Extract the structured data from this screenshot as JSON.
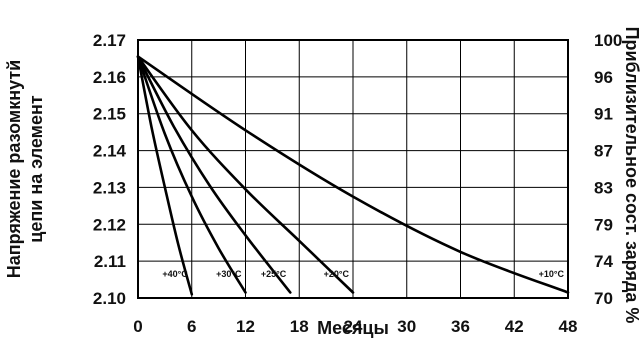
{
  "chart_data": {
    "type": "line",
    "xlabel": "Месяцы",
    "ylabel_lines": [
      "Напряжение разомкнутй",
      "цепи на элемент"
    ],
    "y2label": "Приблизительное сост. заряда %",
    "xlim": [
      0,
      48
    ],
    "ylim": [
      2.1,
      2.17
    ],
    "xticks": [
      "0",
      "6",
      "12",
      "18",
      "24",
      "30",
      "36",
      "42",
      "48"
    ],
    "yticks": [
      "2.10",
      "2.11",
      "2.12",
      "2.13",
      "2.14",
      "2.15",
      "2.16",
      "2.17"
    ],
    "y2ticks": [
      "70",
      "74",
      "79",
      "83",
      "87",
      "91",
      "96",
      "100"
    ],
    "grid": true,
    "series": [
      {
        "name": "+40°C",
        "x": [
          0,
          1.5,
          3,
          4.5,
          6
        ],
        "y": [
          2.1655,
          2.1465,
          2.13,
          2.1145,
          2.101
        ]
      },
      {
        "name": "+30°C",
        "x": [
          0,
          3,
          6,
          9,
          12
        ],
        "y": [
          2.1655,
          2.1445,
          2.1275,
          2.1135,
          2.1015
        ]
      },
      {
        "name": "+25°C",
        "x": [
          0,
          4,
          8,
          12,
          17
        ],
        "y": [
          2.1655,
          2.1465,
          2.1305,
          2.117,
          2.1015
        ]
      },
      {
        "name": "+20°C",
        "x": [
          0,
          6,
          12,
          18,
          24
        ],
        "y": [
          2.1655,
          2.1455,
          2.1295,
          2.1155,
          2.1015
        ]
      },
      {
        "name": "+10°C",
        "x": [
          0,
          12,
          24,
          36,
          48
        ],
        "y": [
          2.1655,
          2.1455,
          2.1275,
          2.1125,
          2.1015
        ]
      }
    ]
  }
}
